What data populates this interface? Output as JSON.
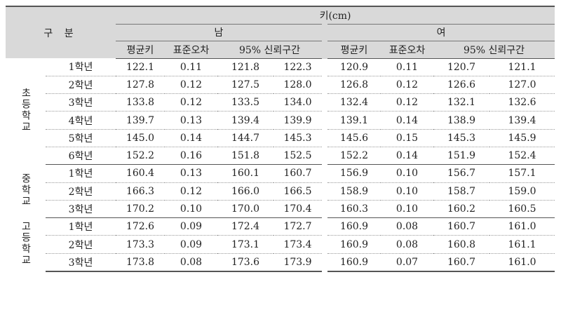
{
  "header": {
    "corner": "구 분",
    "title": "키(cm)",
    "groups": [
      {
        "label": "남",
        "columns": [
          "평균키",
          "표준오차",
          "95% 신뢰구간"
        ]
      },
      {
        "label": "여",
        "columns": [
          "평균키",
          "표준오차",
          "95% 신뢰구간"
        ]
      }
    ]
  },
  "sections": [
    {
      "label": "초등학교",
      "rows": [
        {
          "grade": "1학년",
          "cells": [
            "122.1",
            "0.11",
            "121.8",
            "122.3",
            "120.9",
            "0.11",
            "120.7",
            "121.1"
          ]
        },
        {
          "grade": "2학년",
          "cells": [
            "127.8",
            "0.12",
            "127.5",
            "128.0",
            "126.8",
            "0.12",
            "126.6",
            "127.0"
          ]
        },
        {
          "grade": "3학년",
          "cells": [
            "133.8",
            "0.12",
            "133.5",
            "134.0",
            "132.4",
            "0.12",
            "132.1",
            "132.6"
          ]
        },
        {
          "grade": "4학년",
          "cells": [
            "139.7",
            "0.13",
            "139.4",
            "139.9",
            "139.1",
            "0.14",
            "138.9",
            "139.4"
          ]
        },
        {
          "grade": "5학년",
          "cells": [
            "145.0",
            "0.14",
            "144.7",
            "145.3",
            "145.6",
            "0.15",
            "145.3",
            "145.9"
          ]
        },
        {
          "grade": "6학년",
          "cells": [
            "152.2",
            "0.16",
            "151.8",
            "152.5",
            "152.2",
            "0.14",
            "151.9",
            "152.4"
          ]
        }
      ]
    },
    {
      "label": "중학교",
      "rows": [
        {
          "grade": "1학년",
          "cells": [
            "160.4",
            "0.13",
            "160.1",
            "160.7",
            "156.9",
            "0.10",
            "156.7",
            "157.1"
          ]
        },
        {
          "grade": "2학년",
          "cells": [
            "166.3",
            "0.12",
            "166.0",
            "166.5",
            "158.9",
            "0.10",
            "158.7",
            "159.0"
          ]
        },
        {
          "grade": "3학년",
          "cells": [
            "170.2",
            "0.10",
            "170.0",
            "170.4",
            "160.3",
            "0.10",
            "160.2",
            "160.5"
          ]
        }
      ]
    },
    {
      "label": "고등학교",
      "rows": [
        {
          "grade": "1학년",
          "cells": [
            "172.6",
            "0.09",
            "172.4",
            "172.7",
            "160.9",
            "0.08",
            "160.7",
            "161.0"
          ]
        },
        {
          "grade": "2학년",
          "cells": [
            "173.3",
            "0.09",
            "173.1",
            "173.4",
            "160.9",
            "0.08",
            "160.8",
            "161.1"
          ]
        },
        {
          "grade": "3학년",
          "cells": [
            "173.8",
            "0.08",
            "173.6",
            "173.9",
            "160.9",
            "0.07",
            "160.7",
            "161.0"
          ]
        }
      ]
    }
  ]
}
